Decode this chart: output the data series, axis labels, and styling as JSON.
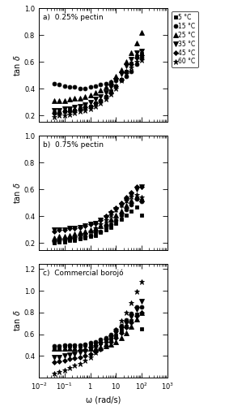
{
  "title_a": "a)  0.25% pectin",
  "title_b": "b)  0.75% pectin",
  "title_c": "c)  Commercial borojó",
  "xlabel": "ω (rad/s)",
  "ylabel": "tan δ",
  "legend_labels": [
    "5 °C",
    "15 °C",
    "25 °C",
    "35 °C",
    "45 °C",
    "60 °C"
  ],
  "markers": [
    "s",
    "o",
    "^",
    "v",
    "D",
    "*"
  ],
  "xvals": [
    0.04,
    0.063,
    0.1,
    0.158,
    0.251,
    0.398,
    0.631,
    1.0,
    1.585,
    2.512,
    3.981,
    6.31,
    10.0,
    15.85,
    25.12,
    39.81,
    63.1,
    100.0
  ],
  "panel_a": {
    "ylim": [
      0.15,
      1.0
    ],
    "yticks": [
      0.2,
      0.4,
      0.6,
      0.8,
      1.0
    ],
    "series": [
      [
        0.22,
        0.22,
        0.23,
        0.24,
        0.24,
        0.25,
        0.26,
        0.27,
        0.29,
        0.31,
        0.34,
        0.38,
        0.42,
        0.47,
        0.53,
        0.59,
        0.64,
        0.66
      ],
      [
        0.44,
        0.43,
        0.42,
        0.41,
        0.41,
        0.4,
        0.4,
        0.41,
        0.42,
        0.43,
        0.44,
        0.45,
        0.46,
        0.47,
        0.49,
        0.53,
        0.58,
        0.63
      ],
      [
        0.31,
        0.31,
        0.31,
        0.32,
        0.33,
        0.33,
        0.34,
        0.35,
        0.37,
        0.39,
        0.41,
        0.45,
        0.49,
        0.54,
        0.6,
        0.67,
        0.74,
        0.82
      ],
      [
        0.24,
        0.24,
        0.25,
        0.25,
        0.26,
        0.27,
        0.28,
        0.3,
        0.32,
        0.34,
        0.37,
        0.41,
        0.46,
        0.51,
        0.57,
        0.62,
        0.67,
        0.68
      ],
      [
        0.22,
        0.22,
        0.23,
        0.23,
        0.24,
        0.25,
        0.26,
        0.27,
        0.29,
        0.31,
        0.34,
        0.37,
        0.42,
        0.47,
        0.53,
        0.58,
        0.63,
        0.65
      ],
      [
        0.19,
        0.2,
        0.2,
        0.21,
        0.22,
        0.23,
        0.24,
        0.25,
        0.27,
        0.29,
        0.32,
        0.36,
        0.4,
        0.46,
        0.51,
        0.56,
        0.6,
        0.61
      ]
    ]
  },
  "panel_b": {
    "ylim": [
      0.15,
      1.0
    ],
    "yticks": [
      0.2,
      0.4,
      0.6,
      0.8,
      1.0
    ],
    "series": [
      [
        0.2,
        0.21,
        0.21,
        0.22,
        0.22,
        0.23,
        0.24,
        0.25,
        0.26,
        0.28,
        0.3,
        0.32,
        0.35,
        0.38,
        0.41,
        0.44,
        0.47,
        0.41
      ],
      [
        0.21,
        0.22,
        0.22,
        0.23,
        0.23,
        0.24,
        0.25,
        0.26,
        0.28,
        0.29,
        0.32,
        0.34,
        0.37,
        0.41,
        0.45,
        0.49,
        0.53,
        0.51
      ],
      [
        0.24,
        0.25,
        0.25,
        0.26,
        0.27,
        0.28,
        0.29,
        0.3,
        0.31,
        0.33,
        0.35,
        0.38,
        0.41,
        0.44,
        0.48,
        0.52,
        0.55,
        0.53
      ],
      [
        0.3,
        0.3,
        0.3,
        0.31,
        0.31,
        0.32,
        0.33,
        0.34,
        0.35,
        0.37,
        0.39,
        0.42,
        0.45,
        0.48,
        0.52,
        0.56,
        0.6,
        0.62
      ],
      [
        0.29,
        0.3,
        0.3,
        0.31,
        0.31,
        0.32,
        0.33,
        0.34,
        0.35,
        0.37,
        0.4,
        0.43,
        0.46,
        0.5,
        0.54,
        0.58,
        0.62,
        0.62
      ],
      [
        0.21,
        0.22,
        0.22,
        0.23,
        0.24,
        0.25,
        0.27,
        0.29,
        0.31,
        0.34,
        0.37,
        0.41,
        0.45,
        0.49,
        0.52,
        0.55,
        0.56,
        0.54
      ]
    ]
  },
  "panel_c": {
    "ylim": [
      0.2,
      1.25
    ],
    "yticks": [
      0.4,
      0.6,
      0.8,
      1.0,
      1.2
    ],
    "series": [
      [
        0.48,
        0.48,
        0.49,
        0.49,
        0.49,
        0.49,
        0.5,
        0.5,
        0.51,
        0.52,
        0.54,
        0.56,
        0.59,
        0.63,
        0.67,
        0.72,
        0.78,
        0.65
      ],
      [
        0.49,
        0.49,
        0.5,
        0.5,
        0.5,
        0.5,
        0.51,
        0.52,
        0.53,
        0.55,
        0.57,
        0.6,
        0.64,
        0.68,
        0.73,
        0.79,
        0.85,
        0.85
      ],
      [
        0.47,
        0.47,
        0.47,
        0.47,
        0.47,
        0.47,
        0.47,
        0.47,
        0.47,
        0.48,
        0.49,
        0.51,
        0.53,
        0.57,
        0.61,
        0.67,
        0.74,
        0.8
      ],
      [
        0.39,
        0.39,
        0.4,
        0.41,
        0.42,
        0.43,
        0.44,
        0.46,
        0.48,
        0.51,
        0.54,
        0.57,
        0.61,
        0.65,
        0.7,
        0.76,
        0.83,
        0.9
      ],
      [
        0.34,
        0.35,
        0.36,
        0.37,
        0.38,
        0.39,
        0.4,
        0.42,
        0.44,
        0.46,
        0.49,
        0.53,
        0.57,
        0.61,
        0.66,
        0.71,
        0.77,
        0.8
      ],
      [
        0.24,
        0.25,
        0.27,
        0.29,
        0.31,
        0.33,
        0.36,
        0.39,
        0.43,
        0.47,
        0.52,
        0.58,
        0.64,
        0.72,
        0.8,
        0.89,
        0.99,
        1.08
      ]
    ]
  }
}
